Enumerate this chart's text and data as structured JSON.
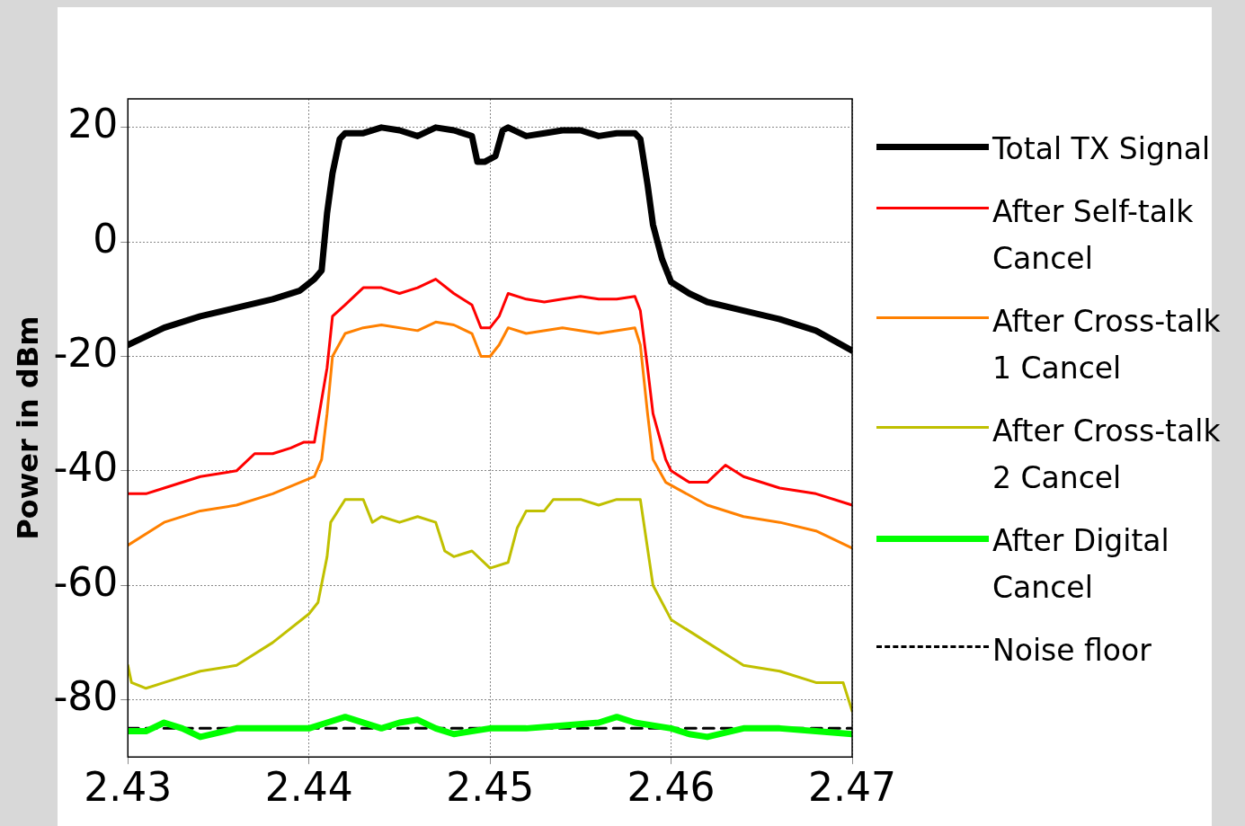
{
  "chart_data": {
    "type": "line",
    "ylabel": "Power in dBm",
    "xlim": [
      2.43,
      2.47
    ],
    "xticks": [
      2.43,
      2.44,
      2.45,
      2.46,
      2.47
    ],
    "ylim": [
      -90,
      25
    ],
    "yticks": [
      -80,
      -60,
      -40,
      -20,
      0,
      20
    ],
    "grid": true,
    "legend": "right",
    "marker": "none",
    "series": [
      {
        "name": "Total TX Signal",
        "color": "#000000",
        "x": [
          2.43,
          2.432,
          2.434,
          2.436,
          2.438,
          2.4395,
          2.4403,
          2.4407,
          2.441,
          2.4413,
          2.4417,
          2.442,
          2.443,
          2.444,
          2.445,
          2.446,
          2.447,
          2.448,
          2.449,
          2.4493,
          2.4497,
          2.4503,
          2.4507,
          2.451,
          2.452,
          2.453,
          2.454,
          2.455,
          2.456,
          2.457,
          2.458,
          2.4583,
          2.4587,
          2.459,
          2.4595,
          2.46,
          2.461,
          2.462,
          2.464,
          2.466,
          2.468,
          2.47
        ],
        "values": [
          -18,
          -15,
          -13,
          -11.5,
          -10,
          -8.5,
          -6.5,
          -5,
          5,
          12,
          18,
          19,
          19,
          20,
          19.5,
          18.5,
          20,
          19.5,
          18.5,
          14,
          14,
          15,
          19.5,
          20,
          18.5,
          19,
          19.5,
          19.5,
          18.5,
          19,
          19,
          18,
          10,
          3,
          -3,
          -7,
          -9,
          -10.5,
          -12,
          -13.5,
          -15.5,
          -19
        ]
      },
      {
        "name": "After Self-talk Cancel",
        "color": "#ff0000",
        "x": [
          2.43,
          2.431,
          2.432,
          2.434,
          2.436,
          2.437,
          2.438,
          2.439,
          2.4397,
          2.4403,
          2.441,
          2.4413,
          2.442,
          2.443,
          2.444,
          2.445,
          2.446,
          2.447,
          2.448,
          2.449,
          2.4495,
          2.45,
          2.4505,
          2.451,
          2.452,
          2.453,
          2.454,
          2.455,
          2.456,
          2.457,
          2.458,
          2.4583,
          2.4587,
          2.459,
          2.4597,
          2.46,
          2.461,
          2.462,
          2.463,
          2.464,
          2.466,
          2.468,
          2.47
        ],
        "values": [
          -44,
          -44,
          -43,
          -41,
          -40,
          -37,
          -37,
          -36,
          -35,
          -35,
          -22,
          -13,
          -11,
          -8,
          -8,
          -9,
          -8,
          -6.5,
          -9,
          -11,
          -15,
          -15,
          -13,
          -9,
          -10,
          -10.5,
          -10,
          -9.5,
          -10,
          -10,
          -9.5,
          -12,
          -22,
          -30,
          -38,
          -40,
          -42,
          -42,
          -39,
          -41,
          -43,
          -44,
          -46
        ]
      },
      {
        "name": "After Cross-talk 1 Cancel",
        "color": "#ff8000",
        "x": [
          2.43,
          2.432,
          2.434,
          2.436,
          2.438,
          2.4403,
          2.4407,
          2.441,
          2.4413,
          2.442,
          2.443,
          2.444,
          2.446,
          2.447,
          2.448,
          2.449,
          2.4495,
          2.45,
          2.4505,
          2.451,
          2.452,
          2.454,
          2.456,
          2.458,
          2.4583,
          2.4587,
          2.459,
          2.4597,
          2.462,
          2.464,
          2.466,
          2.468,
          2.47
        ],
        "values": [
          -53,
          -49,
          -47,
          -46,
          -44,
          -41,
          -38,
          -30,
          -20,
          -16,
          -15,
          -14.5,
          -15.5,
          -14,
          -14.5,
          -16,
          -20,
          -20,
          -18,
          -15,
          -16,
          -15,
          -16,
          -15,
          -18,
          -30,
          -38,
          -42,
          -46,
          -48,
          -49,
          -50.5,
          -53.5
        ]
      },
      {
        "name": "After Cross-talk 2 Cancel",
        "color": "#c0c000",
        "x": [
          2.43,
          2.4302,
          2.431,
          2.432,
          2.434,
          2.436,
          2.438,
          2.44,
          2.4405,
          2.441,
          2.4412,
          2.442,
          2.443,
          2.4435,
          2.444,
          2.445,
          2.446,
          2.447,
          2.4475,
          2.448,
          2.449,
          2.45,
          2.451,
          2.4515,
          2.452,
          2.453,
          2.4535,
          2.455,
          2.456,
          2.457,
          2.4583,
          2.459,
          2.46,
          2.462,
          2.464,
          2.466,
          2.468,
          2.4695,
          2.47
        ],
        "values": [
          -74,
          -77,
          -78,
          -77,
          -75,
          -74,
          -70,
          -65,
          -63,
          -55,
          -49,
          -45,
          -45,
          -49,
          -48,
          -49,
          -48,
          -49,
          -54,
          -55,
          -54,
          -57,
          -56,
          -50,
          -47,
          -47,
          -45,
          -45,
          -46,
          -45,
          -45,
          -60,
          -66,
          -70,
          -74,
          -75,
          -77,
          -77,
          -82
        ]
      },
      {
        "name": "After Digital Cancel",
        "color": "#00ff00",
        "x": [
          2.43,
          2.431,
          2.432,
          2.433,
          2.434,
          2.436,
          2.438,
          2.44,
          2.441,
          2.442,
          2.444,
          2.445,
          2.446,
          2.447,
          2.448,
          2.45,
          2.452,
          2.454,
          2.456,
          2.457,
          2.458,
          2.46,
          2.461,
          2.462,
          2.464,
          2.466,
          2.468,
          2.47
        ],
        "values": [
          -85.5,
          -85.5,
          -84,
          -85,
          -86.5,
          -85,
          -85,
          -85,
          -84,
          -83,
          -85,
          -84,
          -83.5,
          -85,
          -86,
          -85,
          -85,
          -84.5,
          -84,
          -83,
          -84,
          -85,
          -86,
          -86.5,
          -85,
          -85,
          -85.5,
          -86
        ]
      },
      {
        "name": "Noise floor",
        "color": "#000000",
        "line_style": "dashed",
        "x": [
          2.43,
          2.47
        ],
        "values": [
          -85,
          -85
        ]
      }
    ]
  }
}
